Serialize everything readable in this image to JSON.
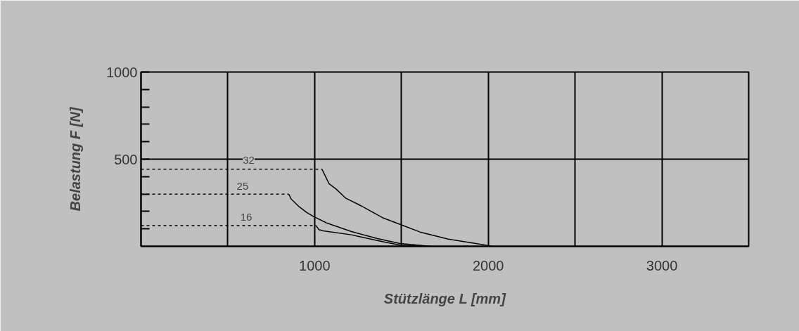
{
  "chart_data": {
    "type": "line",
    "xlabel": "Stützlänge L [mm]",
    "ylabel": "Belastung F [N]",
    "xlim": [
      0,
      3500
    ],
    "ylim": [
      0,
      1000
    ],
    "xticks": [
      {
        "value": 500,
        "label": null
      },
      1000,
      {
        "value": 1500,
        "label": null
      },
      2000,
      {
        "value": 2500,
        "label": null
      },
      3000
    ],
    "yticks": [
      {
        "value": 100,
        "label": null
      },
      {
        "value": 200,
        "label": null
      },
      {
        "value": 300,
        "label": null
      },
      {
        "value": 400,
        "label": null
      },
      500,
      {
        "value": 600,
        "label": null
      },
      {
        "value": 700,
        "label": null
      },
      {
        "value": 800,
        "label": null
      },
      {
        "value": 900,
        "label": null
      },
      1000
    ],
    "grid": true,
    "marker": "none",
    "series": [
      {
        "color": "#000000",
        "line_style": "dashed",
        "x": [
          0,
          1042
        ],
        "values": [
          443,
          443
        ]
      },
      {
        "color": "#000000",
        "line_style": "solid",
        "x": [
          1042,
          1083,
          1123,
          1178,
          1266,
          1396,
          1492,
          1607,
          1770,
          1954,
          2022
        ],
        "values": [
          443,
          359,
          329,
          277,
          233,
          162,
          126,
          82,
          41,
          12,
          0
        ]
      },
      {
        "color": "#000000",
        "line_style": "dashed",
        "x": [
          0,
          851
        ],
        "values": [
          299,
          299
        ]
      },
      {
        "color": "#000000",
        "line_style": "solid",
        "x": [
          851,
          865,
          912,
          953,
          994,
          1069,
          1212,
          1362,
          1492,
          1593,
          1668
        ],
        "values": [
          299,
          271,
          226,
          195,
          171,
          134,
          85,
          44,
          16,
          7,
          0
        ]
      },
      {
        "color": "#000000",
        "line_style": "dashed",
        "x": [
          0,
          1008
        ],
        "values": [
          119,
          119
        ]
      },
      {
        "color": "#000000",
        "line_style": "solid",
        "x": [
          1008,
          1024,
          1049,
          1212,
          1389,
          1492,
          1668
        ],
        "values": [
          119,
          96,
          89,
          66,
          27,
          7,
          0
        ]
      }
    ],
    "annotations": [
      {
        "text": "32",
        "x": 620,
        "y": 500
      },
      {
        "text": "25",
        "x": 585,
        "y": 349
      },
      {
        "text": "16",
        "x": 606,
        "y": 171
      }
    ]
  }
}
